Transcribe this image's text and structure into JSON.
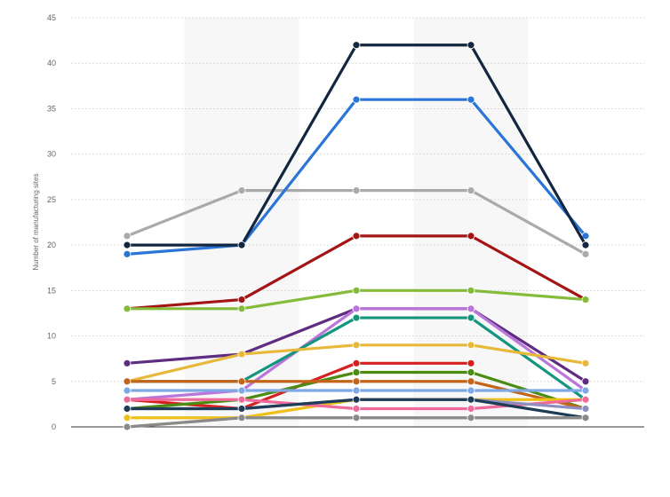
{
  "chart_data": {
    "type": "line",
    "title": "",
    "xlabel": "",
    "ylabel": "Number of manufacturing sites",
    "ylim": [
      0,
      45
    ],
    "yticks": [
      0,
      5,
      10,
      15,
      20,
      25,
      30,
      35,
      40,
      45
    ],
    "categories": [
      "",
      "",
      "",
      "",
      ""
    ],
    "grid": "horizontal dashed",
    "legend": "none",
    "series": [
      {
        "color": "#aaaaaa",
        "values": [
          21,
          26,
          26,
          26,
          19
        ]
      },
      {
        "color": "#2a75d6",
        "values": [
          19,
          20,
          36,
          36,
          21
        ]
      },
      {
        "color": "#13263f",
        "values": [
          20,
          20,
          42,
          42,
          20
        ]
      },
      {
        "color": "#a31515",
        "values": [
          13,
          14,
          21,
          21,
          14
        ]
      },
      {
        "color": "#84bc3a",
        "values": [
          13,
          13,
          15,
          15,
          14
        ]
      },
      {
        "color": "#5e2c80",
        "values": [
          7,
          8,
          13,
          13,
          5
        ]
      },
      {
        "color": "#b975d9",
        "values": [
          3,
          4,
          13,
          13,
          4
        ]
      },
      {
        "color": "#14957d",
        "values": [
          5,
          5,
          12,
          12,
          3
        ]
      },
      {
        "color": "#e8b83a",
        "values": [
          5,
          8,
          9,
          9,
          7
        ]
      },
      {
        "color": "#d62020",
        "values": [
          3,
          2,
          7,
          7,
          null
        ]
      },
      {
        "color": "#4a8c12",
        "values": [
          2,
          3,
          6,
          6,
          2
        ]
      },
      {
        "color": "#c2651a",
        "values": [
          5,
          5,
          5,
          5,
          2
        ]
      },
      {
        "color": "#7fa8e6",
        "values": [
          4,
          4,
          4,
          4,
          4
        ]
      },
      {
        "color": "#f0c01a",
        "values": [
          1,
          1,
          3,
          3,
          3
        ]
      },
      {
        "color": "#ef6a9a",
        "values": [
          3,
          3,
          2,
          2,
          3
        ]
      },
      {
        "color": "#8e8ec0",
        "values": [
          2,
          2,
          3,
          3,
          2
        ]
      },
      {
        "color": "#1f3c57",
        "values": [
          2,
          2,
          3,
          3,
          1
        ]
      },
      {
        "color": "#b8b8b8",
        "values": [
          0,
          1,
          1,
          1,
          1
        ]
      },
      {
        "color": "#8a8a8a",
        "values": [
          0,
          1,
          1,
          1,
          1
        ]
      }
    ]
  }
}
